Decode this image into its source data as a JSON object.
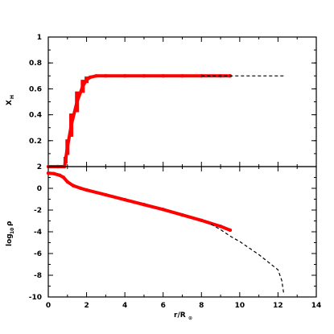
{
  "chart_data": [
    {
      "type": "scatter",
      "panel": "top",
      "ylabel": "X",
      "ylabel_subscript": "H",
      "ylim": [
        0.0,
        1.0
      ],
      "xlim": [
        0,
        14
      ],
      "yticks": [
        "0.2",
        "0.4",
        "0.6",
        "0.8",
        "1"
      ],
      "bottom_tick_label": "2",
      "series": [
        {
          "style": "red-points",
          "color": "#ff0000",
          "x": [
            0.0,
            0.5,
            0.85,
            0.9,
            1.0,
            1.2,
            1.5,
            1.8,
            2.0,
            2.2,
            2.5,
            3.0,
            4.0,
            5.0,
            6.0,
            7.0,
            8.0,
            9.0,
            9.5
          ],
          "y": [
            0.0,
            0.0,
            0.0,
            0.05,
            0.15,
            0.32,
            0.5,
            0.62,
            0.67,
            0.69,
            0.7,
            0.7,
            0.7,
            0.7,
            0.7,
            0.7,
            0.7,
            0.7,
            0.7
          ],
          "y_spread": [
            0.0,
            0.0,
            0.0,
            0.05,
            0.12,
            0.18,
            0.16,
            0.1,
            0.05,
            0.02,
            0.0,
            0.0,
            0.0,
            0.0,
            0.0,
            0.0,
            0.0,
            0.0,
            0.0
          ]
        },
        {
          "style": "black-dashed",
          "color": "#000000",
          "x": [
            8.0,
            9.0,
            10.0,
            11.0,
            12.0,
            12.3
          ],
          "y": [
            0.7,
            0.7,
            0.7,
            0.7,
            0.7,
            0.7
          ]
        }
      ]
    },
    {
      "type": "scatter",
      "panel": "bottom",
      "ylabel": "log",
      "ylabel_subscript": "10",
      "ylabel_suffix": "ρ",
      "xlabel": "r/R",
      "xlabel_subscript": "⊙",
      "ylim": [
        -10,
        2
      ],
      "xlim": [
        0,
        14
      ],
      "yticks": [
        "-10",
        "-8",
        "-6",
        "-4",
        "-2",
        "0"
      ],
      "xticks": [
        "0",
        "2",
        "4",
        "6",
        "8",
        "10",
        "12",
        "14"
      ],
      "series": [
        {
          "style": "red-points",
          "color": "#ff0000",
          "x": [
            0.0,
            0.3,
            0.6,
            0.8,
            1.0,
            1.3,
            1.7,
            2.0,
            3.0,
            4.0,
            5.0,
            6.0,
            7.0,
            8.0,
            9.0,
            9.5
          ],
          "y": [
            1.4,
            1.35,
            1.2,
            1.0,
            0.6,
            0.25,
            0.0,
            -0.15,
            -0.6,
            -1.05,
            -1.5,
            -1.95,
            -2.45,
            -2.95,
            -3.5,
            -3.85
          ]
        },
        {
          "style": "black-dashed",
          "color": "#000000",
          "x": [
            8.5,
            9.0,
            9.5,
            10.0,
            10.5,
            11.0,
            11.5,
            12.0,
            12.2,
            12.3
          ],
          "y": [
            -3.3,
            -3.8,
            -4.4,
            -4.9,
            -5.5,
            -6.1,
            -6.8,
            -7.5,
            -8.5,
            -9.7
          ]
        }
      ]
    }
  ]
}
